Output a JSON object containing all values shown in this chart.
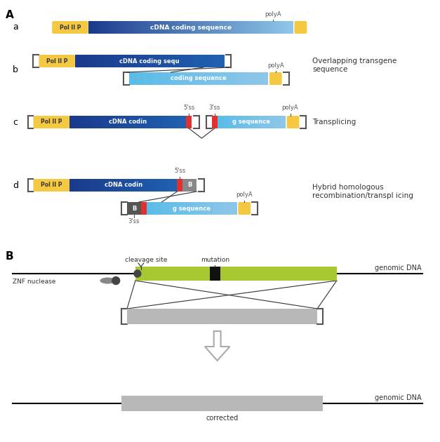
{
  "bg_color": "#ffffff",
  "title_A": "A",
  "title_B": "B",
  "label_a": "a",
  "label_b": "b",
  "label_c": "c",
  "label_d": "d",
  "color_polIIP": "#f5c842",
  "color_cdna_dark": "#1a3a8c",
  "color_cdna_light": "#8ec6e8",
  "color_red": "#e03030",
  "color_polyA": "#f5c842",
  "color_gray_box": "#b8b8b8",
  "color_green": "#a8c832",
  "color_black_mutation": "#111111",
  "color_dark_gray": "#808080",
  "text_overlapping": "Overlapping transgene\nsequence",
  "text_transpl": "Transplicing",
  "text_hybrid": "Hybrid homologous\nrecombination/transpl icing",
  "text_genomicDNA": "genomic DNA",
  "text_corrected": "corrected",
  "text_cleavage": "cleavage site",
  "text_mutation": "mutation",
  "text_ZNF": "ZNF nuclease",
  "text_polyA": "polyA",
  "text_5ss": "5'ss",
  "text_3ss": "3'ss",
  "text_polIIP": "Pol II P",
  "text_cDNA_full": "cDNA coding sequence",
  "text_cDNA_part1": "cDNA coding sequ",
  "text_cDNA_part2": "coding sequence",
  "text_cDNA_codin": "cDNA codin",
  "text_g_seq": "g sequence",
  "text_B": "B"
}
